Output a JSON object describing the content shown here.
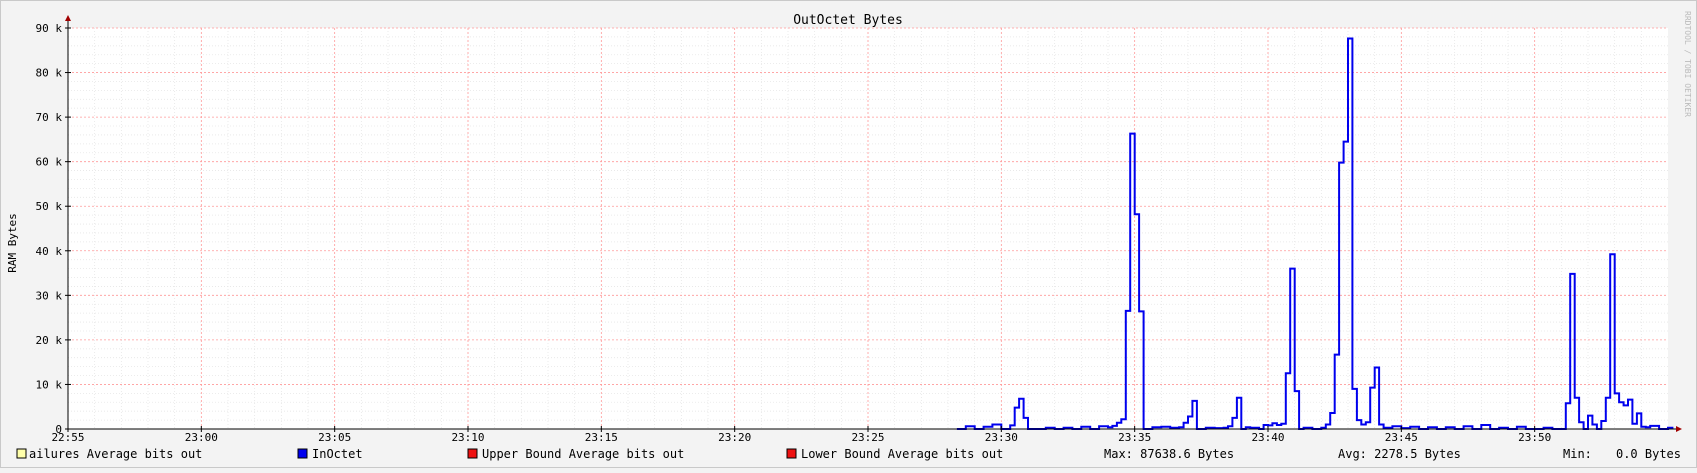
{
  "chart_data": {
    "type": "line",
    "title": "OutOctet Bytes",
    "ylabel": "RAM Bytes",
    "watermark": "RRDTOOL / TOBI OETIKER",
    "ylim": [
      0,
      90000
    ],
    "xlim": [
      "22:55",
      "23:55"
    ],
    "y_ticks": [
      0,
      10000,
      20000,
      30000,
      40000,
      50000,
      60000,
      70000,
      80000,
      90000
    ],
    "y_tick_labels": [
      "0",
      "10 k",
      "20 k",
      "30 k",
      "40 k",
      "50 k",
      "60 k",
      "70 k",
      "80 k",
      "90 k"
    ],
    "x_tick_labels": [
      "22:55",
      "23:00",
      "23:05",
      "23:10",
      "23:15",
      "23:20",
      "23:25",
      "23:30",
      "23:35",
      "23:40",
      "23:45",
      "23:50"
    ],
    "grid": true,
    "series": [
      {
        "name": "InOctet",
        "color": "#0000ee",
        "points": [
          [
            "23:28:20",
            0
          ],
          [
            "23:28:40",
            600
          ],
          [
            "23:29:00",
            0
          ],
          [
            "23:29:20",
            500
          ],
          [
            "23:29:40",
            1000
          ],
          [
            "23:30:00",
            0
          ],
          [
            "23:30:10",
            0
          ],
          [
            "23:30:20",
            800
          ],
          [
            "23:30:30",
            4800
          ],
          [
            "23:30:40",
            6800
          ],
          [
            "23:30:50",
            2500
          ],
          [
            "23:31:00",
            0
          ],
          [
            "23:31:40",
            300
          ],
          [
            "23:32:00",
            0
          ],
          [
            "23:32:20",
            300
          ],
          [
            "23:32:40",
            0
          ],
          [
            "23:33:00",
            500
          ],
          [
            "23:33:20",
            0
          ],
          [
            "23:33:40",
            600
          ],
          [
            "23:34:00",
            400
          ],
          [
            "23:34:10",
            700
          ],
          [
            "23:34:20",
            1400
          ],
          [
            "23:34:30",
            2200
          ],
          [
            "23:34:40",
            26500
          ],
          [
            "23:34:50",
            66300
          ],
          [
            "23:35:00",
            48200
          ],
          [
            "23:35:10",
            26400
          ],
          [
            "23:35:20",
            0
          ],
          [
            "23:35:40",
            400
          ],
          [
            "23:36:00",
            500
          ],
          [
            "23:36:20",
            300
          ],
          [
            "23:36:40",
            400
          ],
          [
            "23:36:50",
            1400
          ],
          [
            "23:37:00",
            2800
          ],
          [
            "23:37:10",
            6300
          ],
          [
            "23:37:20",
            0
          ],
          [
            "23:37:40",
            300
          ],
          [
            "23:38:00",
            200
          ],
          [
            "23:38:20",
            300
          ],
          [
            "23:38:30",
            600
          ],
          [
            "23:38:40",
            2500
          ],
          [
            "23:38:50",
            7000
          ],
          [
            "23:39:00",
            0
          ],
          [
            "23:39:10",
            400
          ],
          [
            "23:39:20",
            300
          ],
          [
            "23:39:40",
            0
          ],
          [
            "23:39:50",
            900
          ],
          [
            "23:40:00",
            800
          ],
          [
            "23:40:10",
            1300
          ],
          [
            "23:40:20",
            900
          ],
          [
            "23:40:30",
            1200
          ],
          [
            "23:40:40",
            12500
          ],
          [
            "23:40:50",
            36000
          ],
          [
            "23:41:00",
            8500
          ],
          [
            "23:41:10",
            0
          ],
          [
            "23:41:20",
            300
          ],
          [
            "23:41:40",
            0
          ],
          [
            "23:42:00",
            300
          ],
          [
            "23:42:10",
            1000
          ],
          [
            "23:42:20",
            3600
          ],
          [
            "23:42:30",
            16700
          ],
          [
            "23:42:40",
            59800
          ],
          [
            "23:42:50",
            64500
          ],
          [
            "23:43:00",
            87639
          ],
          [
            "23:43:10",
            9000
          ],
          [
            "23:43:20",
            2000
          ],
          [
            "23:43:30",
            1000
          ],
          [
            "23:43:40",
            1500
          ],
          [
            "23:43:50",
            9300
          ],
          [
            "23:44:00",
            13800
          ],
          [
            "23:44:10",
            1000
          ],
          [
            "23:44:20",
            300
          ],
          [
            "23:44:40",
            600
          ],
          [
            "23:45:00",
            200
          ],
          [
            "23:45:20",
            500
          ],
          [
            "23:45:40",
            0
          ],
          [
            "23:46:00",
            400
          ],
          [
            "23:46:20",
            0
          ],
          [
            "23:46:40",
            400
          ],
          [
            "23:47:00",
            0
          ],
          [
            "23:47:20",
            600
          ],
          [
            "23:47:40",
            0
          ],
          [
            "23:48:00",
            900
          ],
          [
            "23:48:20",
            0
          ],
          [
            "23:48:40",
            300
          ],
          [
            "23:49:00",
            0
          ],
          [
            "23:49:20",
            500
          ],
          [
            "23:49:40",
            0
          ],
          [
            "23:50:20",
            300
          ],
          [
            "23:50:40",
            0
          ],
          [
            "23:51:10",
            5800
          ],
          [
            "23:51:20",
            34800
          ],
          [
            "23:51:30",
            7000
          ],
          [
            "23:51:40",
            1500
          ],
          [
            "23:51:50",
            0
          ],
          [
            "23:52:00",
            3000
          ],
          [
            "23:52:10",
            1000
          ],
          [
            "23:52:20",
            0
          ],
          [
            "23:52:30",
            1800
          ],
          [
            "23:52:40",
            7000
          ],
          [
            "23:52:50",
            39200
          ],
          [
            "23:53:00",
            8000
          ],
          [
            "23:53:10",
            6000
          ],
          [
            "23:53:20",
            5300
          ],
          [
            "23:53:30",
            6600
          ],
          [
            "23:53:40",
            1200
          ],
          [
            "23:53:50",
            3500
          ],
          [
            "23:54:00",
            500
          ],
          [
            "23:54:10",
            400
          ],
          [
            "23:54:20",
            700
          ],
          [
            "23:54:40",
            0
          ],
          [
            "23:55:00",
            300
          ],
          [
            "23:55:10",
            0
          ]
        ]
      }
    ]
  },
  "legend": [
    {
      "label": "ailures Average bits out",
      "color": "#ffffaa"
    },
    {
      "label": "InOctet",
      "color": "#0000ee"
    },
    {
      "label": "Upper Bound Average bits out",
      "color": "#ee1111"
    },
    {
      "label": "Lower Bound Average bits out",
      "color": "#ee1111"
    }
  ],
  "stats": {
    "max": "Max: 87638.6 Bytes",
    "avg": "Avg: 2278.5 Bytes",
    "min_label": "Min:",
    "min_value": "0.0 Bytes"
  }
}
